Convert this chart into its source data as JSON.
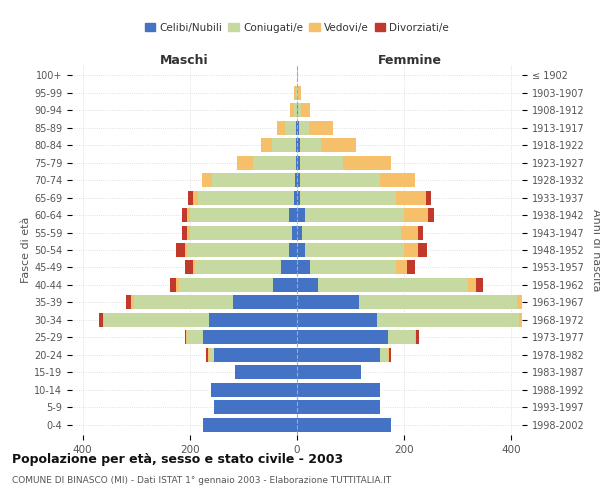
{
  "age_groups": [
    "0-4",
    "5-9",
    "10-14",
    "15-19",
    "20-24",
    "25-29",
    "30-34",
    "35-39",
    "40-44",
    "45-49",
    "50-54",
    "55-59",
    "60-64",
    "65-69",
    "70-74",
    "75-79",
    "80-84",
    "85-89",
    "90-94",
    "95-99",
    "100+"
  ],
  "birth_years": [
    "1998-2002",
    "1993-1997",
    "1988-1992",
    "1983-1987",
    "1978-1982",
    "1973-1977",
    "1968-1972",
    "1963-1967",
    "1958-1962",
    "1953-1957",
    "1948-1952",
    "1943-1947",
    "1938-1942",
    "1933-1937",
    "1928-1932",
    "1923-1927",
    "1918-1922",
    "1913-1917",
    "1908-1912",
    "1903-1907",
    "≤ 1902"
  ],
  "male_celibe": [
    175,
    155,
    160,
    115,
    155,
    175,
    165,
    120,
    45,
    30,
    15,
    10,
    15,
    5,
    3,
    2,
    2,
    2,
    0,
    0,
    0
  ],
  "male_coniugato": [
    0,
    0,
    0,
    0,
    10,
    30,
    195,
    185,
    175,
    160,
    190,
    190,
    185,
    180,
    155,
    80,
    45,
    20,
    5,
    2,
    0
  ],
  "male_vedovo": [
    0,
    0,
    0,
    0,
    2,
    2,
    2,
    5,
    5,
    5,
    5,
    5,
    5,
    10,
    20,
    30,
    20,
    15,
    8,
    3,
    0
  ],
  "male_divorziato": [
    0,
    0,
    0,
    0,
    2,
    2,
    8,
    10,
    12,
    15,
    15,
    10,
    10,
    8,
    0,
    0,
    0,
    0,
    0,
    0,
    0
  ],
  "female_celibe": [
    175,
    155,
    155,
    120,
    155,
    170,
    150,
    115,
    40,
    25,
    15,
    10,
    15,
    5,
    5,
    5,
    5,
    3,
    2,
    0,
    0
  ],
  "female_coniugata": [
    0,
    0,
    0,
    0,
    15,
    50,
    265,
    295,
    280,
    160,
    185,
    185,
    185,
    180,
    150,
    80,
    40,
    20,
    5,
    2,
    0
  ],
  "female_vedova": [
    0,
    0,
    0,
    0,
    2,
    3,
    5,
    10,
    15,
    20,
    25,
    30,
    45,
    55,
    65,
    90,
    65,
    45,
    18,
    5,
    2
  ],
  "female_divorziata": [
    0,
    0,
    0,
    0,
    3,
    5,
    8,
    15,
    12,
    15,
    18,
    10,
    10,
    10,
    0,
    0,
    0,
    0,
    0,
    0,
    0
  ],
  "color_celibe": "#4472c4",
  "color_coniugato": "#c5d9a0",
  "color_vedovo": "#f5c069",
  "color_divorziato": "#c0392b",
  "title": "Popolazione per età, sesso e stato civile - 2003",
  "subtitle": "COMUNE DI BINASCO (MI) - Dati ISTAT 1° gennaio 2003 - Elaborazione TUTTITALIA.IT",
  "xlabel_left": "Maschi",
  "xlabel_right": "Femmine",
  "ylabel_left": "Fasce di età",
  "ylabel_right": "Anni di nascita",
  "xlim": 420,
  "bg_color": "#ffffff",
  "grid_color": "#cccccc",
  "bar_height": 0.8
}
